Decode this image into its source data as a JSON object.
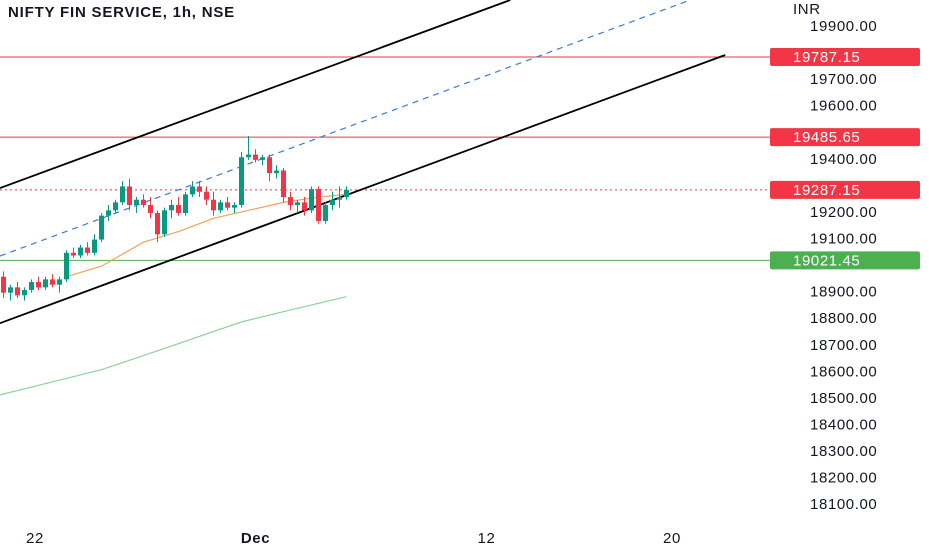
{
  "chart_data": {
    "type": "candlestick",
    "title": "NIFTY FIN SERVICE, 1h, NSE",
    "y_unit": "INR",
    "up_color": "#089981",
    "down_color": "#f23645",
    "xlim": [
      -0.5,
      109.5
    ],
    "xticks": [
      {
        "value": 4.5,
        "label": "22"
      },
      {
        "value": 36,
        "label": "Dec"
      },
      {
        "value": 69,
        "label": "12"
      },
      {
        "value": 95.5,
        "label": "20"
      }
    ],
    "ylim": [
      18044,
      20002
    ],
    "yticks": [
      {
        "value": 19900,
        "label": "19900.00"
      },
      {
        "value": 19700,
        "label": "19700.00"
      },
      {
        "value": 19600,
        "label": "19600.00"
      },
      {
        "value": 19400,
        "label": "19400.00"
      },
      {
        "value": 19200,
        "label": "19200.00"
      },
      {
        "value": 19100,
        "label": "19100.00"
      },
      {
        "value": 18900,
        "label": "18900.00"
      },
      {
        "value": 18800,
        "label": "18800.00"
      },
      {
        "value": 18700,
        "label": "18700.00"
      },
      {
        "value": 18600,
        "label": "18600.00"
      },
      {
        "value": 18500,
        "label": "18500.00"
      },
      {
        "value": 18400,
        "label": "18400.00"
      },
      {
        "value": 18300,
        "label": "18300.00"
      },
      {
        "value": 18200,
        "label": "18200.00"
      },
      {
        "value": 18100,
        "label": "18100.00"
      }
    ],
    "candles": {
      "x": [
        0,
        1,
        2,
        3,
        4,
        5,
        6,
        7,
        8,
        9,
        10,
        11,
        12,
        13,
        14,
        15,
        16,
        17,
        18,
        19,
        20,
        21,
        22,
        23,
        24,
        25,
        26,
        27,
        28,
        29,
        30,
        31,
        32,
        33,
        34,
        35,
        36,
        37,
        38,
        39,
        40,
        41,
        42,
        43,
        44,
        45,
        46,
        47,
        48,
        49
      ],
      "open": [
        18960,
        18900,
        18920,
        18890,
        18910,
        18940,
        18920,
        18950,
        18930,
        18950,
        19050,
        19040,
        19070,
        19050,
        19100,
        19190,
        19210,
        19240,
        19300,
        19230,
        19250,
        19230,
        19200,
        19120,
        19210,
        19230,
        19200,
        19270,
        19300,
        19280,
        19250,
        19210,
        19240,
        19220,
        19230,
        19410,
        19420,
        19400,
        19410,
        19350,
        19360,
        19260,
        19230,
        19240,
        19210,
        19290,
        19170,
        19230,
        19250,
        19260
      ],
      "high": [
        18980,
        18930,
        18940,
        18920,
        18950,
        18960,
        18960,
        18970,
        18960,
        19060,
        19070,
        19080,
        19090,
        19120,
        19200,
        19230,
        19250,
        19320,
        19330,
        19260,
        19270,
        19260,
        19210,
        19220,
        19250,
        19260,
        19280,
        19320,
        19320,
        19300,
        19280,
        19250,
        19260,
        19240,
        19430,
        19490,
        19440,
        19420,
        19420,
        19380,
        19370,
        19280,
        19250,
        19260,
        19300,
        19300,
        19240,
        19280,
        19300,
        19300
      ],
      "low": [
        18880,
        18870,
        18880,
        18870,
        18900,
        18910,
        18910,
        18920,
        18900,
        18940,
        19030,
        19030,
        19040,
        19040,
        19090,
        19170,
        19200,
        19230,
        19210,
        19200,
        19220,
        19180,
        19090,
        19110,
        19180,
        19190,
        19190,
        19260,
        19260,
        19230,
        19190,
        19200,
        19210,
        19200,
        19220,
        19400,
        19390,
        19380,
        19320,
        19330,
        19240,
        19210,
        19200,
        19190,
        19200,
        19160,
        19160,
        19210,
        19220,
        19250
      ],
      "close": [
        18900,
        18920,
        18890,
        18910,
        18940,
        18920,
        18950,
        18930,
        18950,
        19050,
        19040,
        19070,
        19050,
        19100,
        19190,
        19210,
        19240,
        19300,
        19230,
        19250,
        19230,
        19200,
        19120,
        19210,
        19230,
        19200,
        19270,
        19300,
        19280,
        19250,
        19210,
        19240,
        19220,
        19230,
        19410,
        19420,
        19400,
        19410,
        19350,
        19360,
        19260,
        19230,
        19240,
        19210,
        19290,
        19170,
        19230,
        19250,
        19260,
        19287.15
      ]
    },
    "lines": [
      {
        "color": "#f5a15a",
        "style": "solid",
        "x": [
          9,
          14,
          20,
          25,
          30,
          35,
          40,
          45,
          49
        ],
        "values": [
          18960,
          19000,
          19090,
          19130,
          19180,
          19210,
          19240,
          19260,
          19270
        ]
      },
      {
        "color": "#8fd19e",
        "style": "solid",
        "x": [
          -0.5,
          14,
          23,
          34,
          41,
          49
        ],
        "values": [
          18515,
          18610,
          18690,
          18790,
          18835,
          18885
        ]
      },
      {
        "color": "#000000",
        "style": "solid",
        "x": [
          -0.5,
          72.4
        ],
        "values": [
          19294,
          20002
        ]
      },
      {
        "color": "#000000",
        "style": "solid",
        "x": [
          -0.5,
          103.1
        ],
        "values": [
          18785,
          19795
        ]
      },
      {
        "color": "#3d7ad6",
        "style": "dashed",
        "x": [
          -0.5,
          98.1
        ],
        "values": [
          19038,
          20002
        ]
      }
    ],
    "levels": [
      {
        "value": 19787.15,
        "color": "#f23645",
        "style": "solid"
      },
      {
        "value": 19485.65,
        "color": "#f23645",
        "style": "solid"
      },
      {
        "value": 19287.15,
        "color": "#f23645",
        "style": "dotted"
      },
      {
        "value": 19021.45,
        "color": "#4caf50",
        "style": "solid"
      }
    ]
  }
}
